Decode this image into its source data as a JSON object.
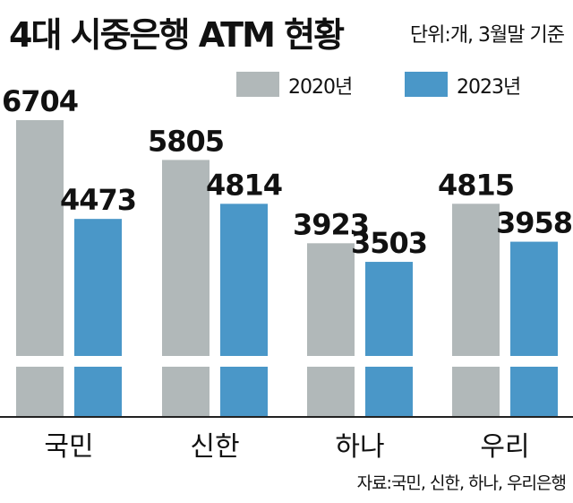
{
  "chart_data": {
    "type": "bar",
    "title": "4대 시중은행 ATM 현황",
    "unit_note": "단위:개, 3월말 기준",
    "source": "자료:국민, 신한, 하나, 우리은행",
    "categories": [
      "국민",
      "신한",
      "하나",
      "우리"
    ],
    "series": [
      {
        "name": "2020년",
        "values": [
          6704,
          5805,
          3923,
          4815
        ],
        "color": "#b1b8b9"
      },
      {
        "name": "2023년",
        "values": [
          4473,
          4814,
          3503,
          3958
        ],
        "color": "#4a97c8"
      }
    ],
    "axis_break": true,
    "legend_position": "top-right",
    "grid": false
  }
}
